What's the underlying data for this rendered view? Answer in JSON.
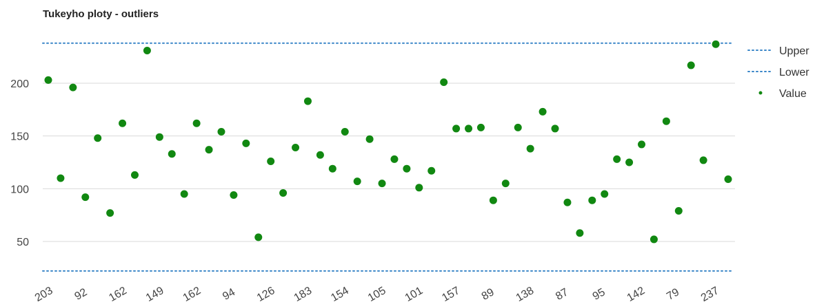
{
  "chart_data": {
    "type": "scatter",
    "title": "Tukeyho ploty - outliers",
    "xlabel": "",
    "ylabel": "",
    "ylim": [
      20,
      245
    ],
    "yticks": [
      50,
      100,
      150,
      200
    ],
    "grid": true,
    "legend_position": "right",
    "x_tick_labels": [
      "203",
      "92",
      "162",
      "149",
      "162",
      "94",
      "126",
      "183",
      "154",
      "105",
      "101",
      "157",
      "89",
      "138",
      "87",
      "95",
      "142",
      "79",
      "237"
    ],
    "series": [
      {
        "name": "Upper",
        "kind": "dotted-line",
        "color": "#3a86c8",
        "value": 238
      },
      {
        "name": "Lower",
        "kind": "dotted-line",
        "color": "#3a86c8",
        "value": 22
      },
      {
        "name": "Value",
        "kind": "points",
        "color": "#118811",
        "values": [
          203,
          110,
          196,
          92,
          148,
          77,
          162,
          113,
          231,
          149,
          133,
          95,
          162,
          137,
          154,
          94,
          143,
          54,
          126,
          96,
          139,
          183,
          132,
          119,
          154,
          107,
          147,
          105,
          128,
          119,
          101,
          117,
          201,
          157,
          157,
          158,
          89,
          105,
          158,
          138,
          173,
          157,
          87,
          58,
          89,
          95,
          128,
          125,
          142,
          52,
          164,
          79,
          217,
          127,
          237,
          109
        ]
      }
    ]
  }
}
